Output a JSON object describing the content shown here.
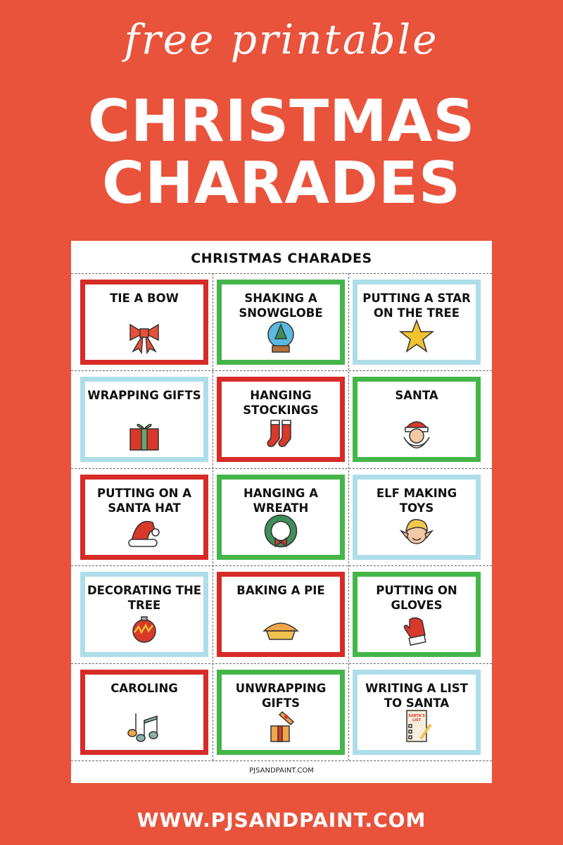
{
  "header": {
    "script_title": "free printable",
    "line1": "CHRISTMAS",
    "line2": "CHARADES"
  },
  "sheet": {
    "title": "CHRISTMAS CHARADES",
    "footer": "PJSANDPAINT.COM",
    "cards": [
      {
        "label": "TIE A BOW",
        "color": "red",
        "icon": "bow-icon"
      },
      {
        "label": "SHAKING A SNOWGLOBE",
        "color": "green",
        "icon": "snowglobe-icon"
      },
      {
        "label": "PUTTING A STAR ON THE TREE",
        "color": "blue",
        "icon": "star-icon"
      },
      {
        "label": "WRAPPING GIFTS",
        "color": "blue",
        "icon": "gift-icon"
      },
      {
        "label": "HANGING STOCKINGS",
        "color": "red",
        "icon": "stockings-icon"
      },
      {
        "label": "SANTA",
        "color": "green",
        "icon": "santa-icon"
      },
      {
        "label": "PUTTING ON A SANTA HAT",
        "color": "red",
        "icon": "santa-hat-icon"
      },
      {
        "label": "HANGING A WREATH",
        "color": "green",
        "icon": "wreath-icon"
      },
      {
        "label": "ELF MAKING TOYS",
        "color": "blue",
        "icon": "elf-icon"
      },
      {
        "label": "DECORATING THE TREE",
        "color": "blue",
        "icon": "ornament-icon"
      },
      {
        "label": "BAKING A PIE",
        "color": "red",
        "icon": "pie-icon"
      },
      {
        "label": "PUTTING ON GLOVES",
        "color": "green",
        "icon": "mitten-icon"
      },
      {
        "label": "CAROLING",
        "color": "red",
        "icon": "music-notes-icon"
      },
      {
        "label": "UNWRAPPING GIFTS",
        "color": "green",
        "icon": "open-gift-icon"
      },
      {
        "label": "WRITING A LIST TO SANTA",
        "color": "blue",
        "icon": "santas-list-icon",
        "icon_text": "SANTA'S LIST"
      }
    ]
  },
  "footer_url": "WWW.PJSANDPAINT.COM",
  "colors": {
    "background": "#E9533B",
    "red": "#D62B27",
    "green": "#44B549",
    "blue": "#AEDDEA"
  }
}
